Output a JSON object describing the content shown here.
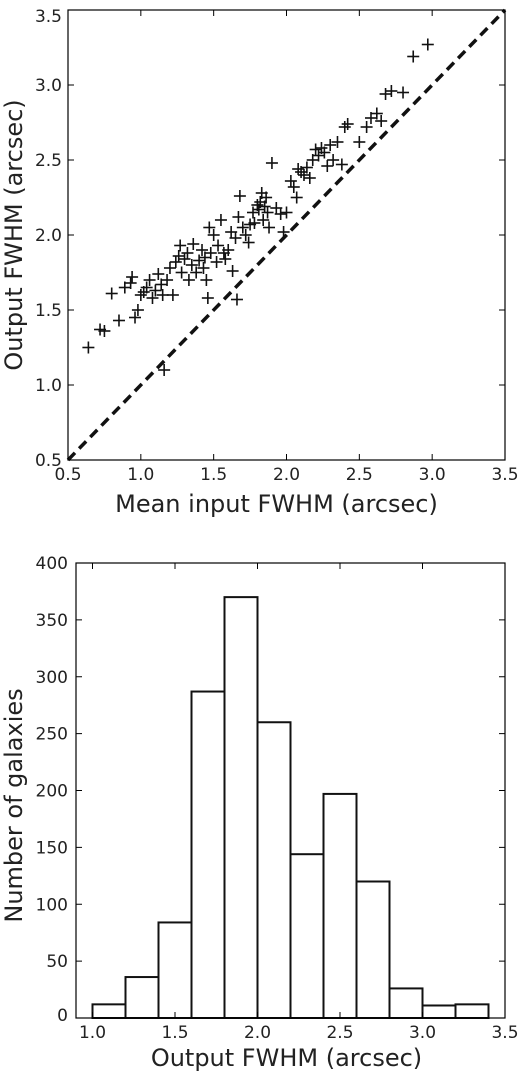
{
  "chart_data": [
    {
      "type": "scatter",
      "title": "",
      "xlabel": "Mean input FWHM (arcsec)",
      "ylabel": "Output FWHM (arcsec)",
      "xlim": [
        0.5,
        3.5
      ],
      "ylim": [
        0.5,
        3.5
      ],
      "xticks": [
        "0.5",
        "1.0",
        "1.5",
        "2.0",
        "2.5",
        "3.0",
        "3.5"
      ],
      "yticks": [
        "0.5",
        "1.0",
        "1.5",
        "2.0",
        "2.5",
        "3.0",
        "3.5"
      ],
      "marker": "plus",
      "reference_line": {
        "style": "dashed",
        "y_equals_x": true
      },
      "points": [
        [
          0.64,
          1.25
        ],
        [
          0.72,
          1.37
        ],
        [
          0.75,
          1.36
        ],
        [
          0.8,
          1.61
        ],
        [
          0.85,
          1.43
        ],
        [
          0.89,
          1.65
        ],
        [
          0.93,
          1.68
        ],
        [
          0.94,
          1.72
        ],
        [
          0.96,
          1.45
        ],
        [
          0.98,
          1.5
        ],
        [
          1.0,
          1.6
        ],
        [
          1.02,
          1.62
        ],
        [
          1.04,
          1.65
        ],
        [
          1.06,
          1.7
        ],
        [
          1.08,
          1.58
        ],
        [
          1.1,
          1.63
        ],
        [
          1.12,
          1.74
        ],
        [
          1.14,
          1.67
        ],
        [
          1.15,
          1.6
        ],
        [
          1.16,
          1.1
        ],
        [
          1.18,
          1.7
        ],
        [
          1.2,
          1.78
        ],
        [
          1.22,
          1.6
        ],
        [
          1.24,
          1.82
        ],
        [
          1.26,
          1.86
        ],
        [
          1.27,
          1.93
        ],
        [
          1.28,
          1.75
        ],
        [
          1.3,
          1.84
        ],
        [
          1.32,
          1.88
        ],
        [
          1.33,
          1.7
        ],
        [
          1.35,
          1.8
        ],
        [
          1.36,
          1.94
        ],
        [
          1.38,
          1.75
        ],
        [
          1.4,
          1.83
        ],
        [
          1.42,
          1.9
        ],
        [
          1.43,
          1.78
        ],
        [
          1.44,
          1.85
        ],
        [
          1.45,
          1.7
        ],
        [
          1.46,
          1.58
        ],
        [
          1.47,
          2.05
        ],
        [
          1.48,
          1.88
        ],
        [
          1.5,
          2.0
        ],
        [
          1.52,
          1.82
        ],
        [
          1.53,
          1.93
        ],
        [
          1.55,
          2.1
        ],
        [
          1.57,
          1.88
        ],
        [
          1.58,
          1.84
        ],
        [
          1.6,
          1.9
        ],
        [
          1.62,
          2.02
        ],
        [
          1.63,
          1.76
        ],
        [
          1.65,
          1.98
        ],
        [
          1.66,
          1.57
        ],
        [
          1.67,
          2.12
        ],
        [
          1.68,
          2.26
        ],
        [
          1.7,
          2.05
        ],
        [
          1.72,
          2.0
        ],
        [
          1.74,
          1.95
        ],
        [
          1.75,
          2.07
        ],
        [
          1.77,
          2.15
        ],
        [
          1.78,
          2.08
        ],
        [
          1.8,
          2.2
        ],
        [
          1.81,
          2.17
        ],
        [
          1.82,
          2.22
        ],
        [
          1.83,
          2.28
        ],
        [
          1.84,
          2.1
        ],
        [
          1.85,
          2.19
        ],
        [
          1.86,
          2.25
        ],
        [
          1.87,
          2.15
        ],
        [
          1.88,
          2.05
        ],
        [
          1.9,
          2.48
        ],
        [
          1.93,
          2.18
        ],
        [
          1.96,
          2.14
        ],
        [
          1.98,
          2.02
        ],
        [
          2.0,
          2.15
        ],
        [
          2.03,
          2.36
        ],
        [
          2.05,
          2.32
        ],
        [
          2.07,
          2.25
        ],
        [
          2.08,
          2.44
        ],
        [
          2.1,
          2.42
        ],
        [
          2.12,
          2.4
        ],
        [
          2.14,
          2.45
        ],
        [
          2.16,
          2.38
        ],
        [
          2.18,
          2.5
        ],
        [
          2.2,
          2.57
        ],
        [
          2.22,
          2.53
        ],
        [
          2.24,
          2.58
        ],
        [
          2.26,
          2.55
        ],
        [
          2.28,
          2.46
        ],
        [
          2.3,
          2.6
        ],
        [
          2.32,
          2.5
        ],
        [
          2.35,
          2.62
        ],
        [
          2.38,
          2.47
        ],
        [
          2.4,
          2.72
        ],
        [
          2.42,
          2.74
        ],
        [
          2.5,
          2.62
        ],
        [
          2.55,
          2.72
        ],
        [
          2.58,
          2.78
        ],
        [
          2.62,
          2.81
        ],
        [
          2.65,
          2.76
        ],
        [
          2.68,
          2.94
        ],
        [
          2.72,
          2.96
        ],
        [
          2.8,
          2.95
        ],
        [
          2.87,
          3.19
        ],
        [
          2.97,
          3.27
        ]
      ]
    },
    {
      "type": "bar",
      "title": "",
      "xlabel": "Output FWHM (arcsec)",
      "ylabel": "Number of galaxies",
      "xlim": [
        0.9,
        3.5
      ],
      "ylim": [
        0,
        400
      ],
      "xticks": [
        "1.0",
        "1.5",
        "2.0",
        "2.5",
        "3.0",
        "3.5"
      ],
      "yticks": [
        "0",
        "50",
        "100",
        "150",
        "200",
        "250",
        "300",
        "350",
        "400"
      ],
      "bin_edges": [
        1.0,
        1.2,
        1.4,
        1.6,
        1.8,
        2.0,
        2.2,
        2.4,
        2.6,
        2.8,
        3.0,
        3.2,
        3.4
      ],
      "counts": [
        12,
        36,
        84,
        287,
        370,
        260,
        144,
        197,
        120,
        26,
        11,
        12
      ]
    }
  ]
}
